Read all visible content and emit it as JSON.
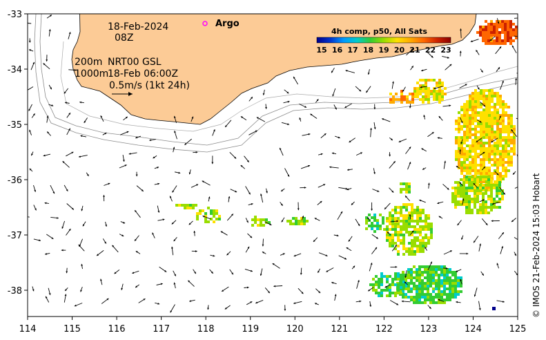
{
  "map": {
    "date_line": "18-Feb-2024",
    "hour_line": "08Z",
    "contour_line_1": "200m",
    "contour_line_2": "1000m",
    "model_label": "NRT00 GSL",
    "model_time": "18-Feb 06:00Z",
    "scale_label": "0.5m/s (1kt 24h)",
    "argo_label": "Argo",
    "credit": "© IMOS 21-Feb-2024 15:03 Hobart",
    "colorbar": {
      "title": "4h comp, p50, All Sats",
      "ticks": [
        "15",
        "16",
        "17",
        "18",
        "19",
        "20",
        "21",
        "22",
        "23"
      ],
      "colors": [
        "#00008b",
        "#0033cc",
        "#0099ff",
        "#00cccc",
        "#33cc33",
        "#99dd00",
        "#ffe000",
        "#ffaa00",
        "#ff6600",
        "#cc2200",
        "#8b0000"
      ]
    },
    "x_ticks": [
      "114",
      "115",
      "116",
      "117",
      "118",
      "119",
      "120",
      "121",
      "122",
      "123",
      "124",
      "125"
    ],
    "y_ticks": [
      "-33",
      "-34",
      "-35",
      "-36",
      "-37",
      "-38"
    ],
    "land_color": "#fccb96",
    "argo_color": "#ff00ff"
  }
}
